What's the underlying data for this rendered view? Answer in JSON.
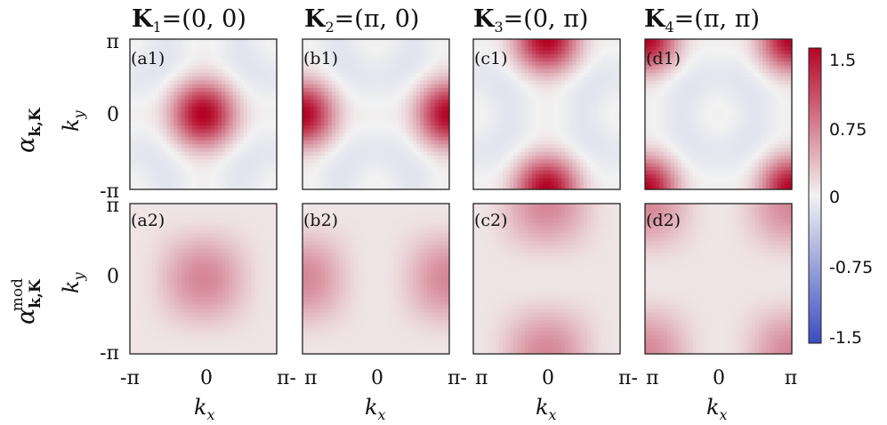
{
  "columns": [
    {
      "title_bold": "K",
      "title_sub": "1",
      "title_rest": "=(0, 0)"
    },
    {
      "title_bold": "K",
      "title_sub": "2",
      "title_rest": "=(π, 0)"
    },
    {
      "title_bold": "K",
      "title_sub": "3",
      "title_rest": "=(0, π)"
    },
    {
      "title_bold": "K",
      "title_sub": "4",
      "title_rest": "=(π, π)"
    }
  ],
  "rows": [
    {
      "label_main": "α",
      "label_sub": "k,K",
      "label_sup": ""
    },
    {
      "label_main": "α",
      "label_sub": "k,K",
      "label_sup": "mod"
    }
  ],
  "panel_tags": [
    [
      "(a1)",
      "(b1)",
      "(c1)",
      "(d1)"
    ],
    [
      "(a2)",
      "(b2)",
      "(c2)",
      "(d2)"
    ]
  ],
  "axes": {
    "ylabel_main": "k",
    "ylabel_sub": "y",
    "xlabel_main": "k",
    "xlabel_sub": "x",
    "yticks": [
      "π",
      "0",
      "-π"
    ],
    "xtick_first": [
      "-π",
      "0",
      "π-"
    ],
    "xtick_mid": [
      "π",
      "0",
      "π-"
    ],
    "xtick_last": [
      "π",
      "0",
      "π"
    ]
  },
  "colorbar": {
    "ticks": [
      "1.5",
      "0.75",
      "0",
      "-0.75",
      "-1.5"
    ],
    "range": [
      -1.5,
      1.5
    ],
    "colors": {
      "low": "#3b4cc0",
      "mid": "#f2f2f2",
      "high": "#b40426"
    }
  },
  "chart_data": {
    "type": "heatmap",
    "description_kind": "4x2 grid of 2D maps over kx, ky in [-π, π]",
    "x": [
      "-π",
      "0",
      "π"
    ],
    "y": [
      "-π",
      "0",
      "π"
    ],
    "clim": [
      -1.5,
      1.5
    ],
    "maps": [
      {
        "panel": "(a1)",
        "K": "(0, 0)",
        "peak": 1.5,
        "peak_at": [
          "0",
          "0"
        ],
        "modified": false
      },
      {
        "panel": "(b1)",
        "K": "(π, 0)",
        "peak": 1.5,
        "peak_at": [
          "±π",
          "0"
        ],
        "modified": false
      },
      {
        "panel": "(c1)",
        "K": "(0, π)",
        "peak": 1.5,
        "peak_at": [
          "0",
          "±π"
        ],
        "modified": false
      },
      {
        "panel": "(d1)",
        "K": "(π, π)",
        "peak": 1.5,
        "peak_at": [
          "±π",
          "±π"
        ],
        "modified": false
      },
      {
        "panel": "(a2)",
        "K": "(0, 0)",
        "peak": 0.6,
        "peak_at": [
          "0",
          "0"
        ],
        "modified": true
      },
      {
        "panel": "(b2)",
        "K": "(π, 0)",
        "peak": 0.6,
        "peak_at": [
          "±π",
          "0"
        ],
        "modified": true
      },
      {
        "panel": "(c2)",
        "K": "(0, π)",
        "peak": 0.6,
        "peak_at": [
          "0",
          "±π"
        ],
        "modified": true
      },
      {
        "panel": "(d2)",
        "K": "(π, π)",
        "peak": 0.6,
        "peak_at": [
          "±π",
          "±π"
        ],
        "modified": true
      }
    ]
  }
}
